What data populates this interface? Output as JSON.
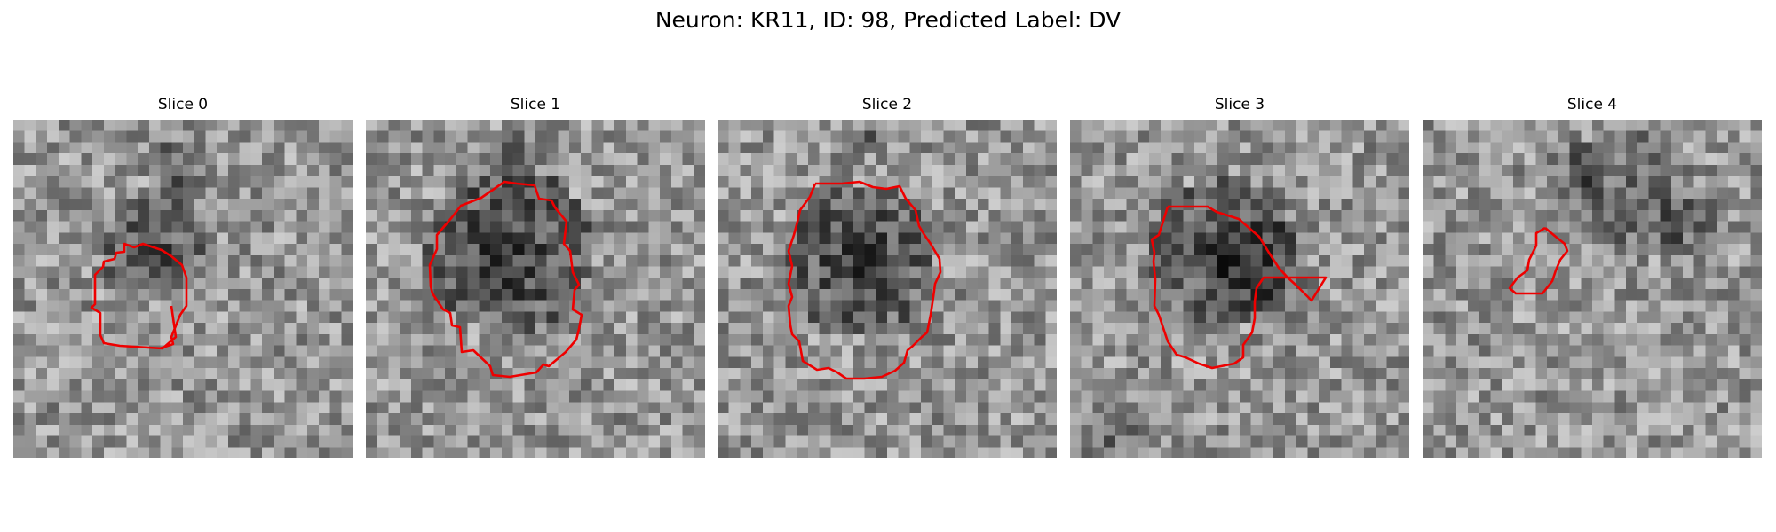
{
  "figure": {
    "title": "Neuron: KR11, ID: 98, Predicted Label: DV"
  },
  "panels": [
    {
      "title": "Slice 0"
    },
    {
      "title": "Slice 1"
    },
    {
      "title": "Slice 2"
    },
    {
      "title": "Slice 3"
    },
    {
      "title": "Slice 4"
    }
  ],
  "colors": {
    "contour": "#ee0000",
    "colormap": "grayscale"
  }
}
